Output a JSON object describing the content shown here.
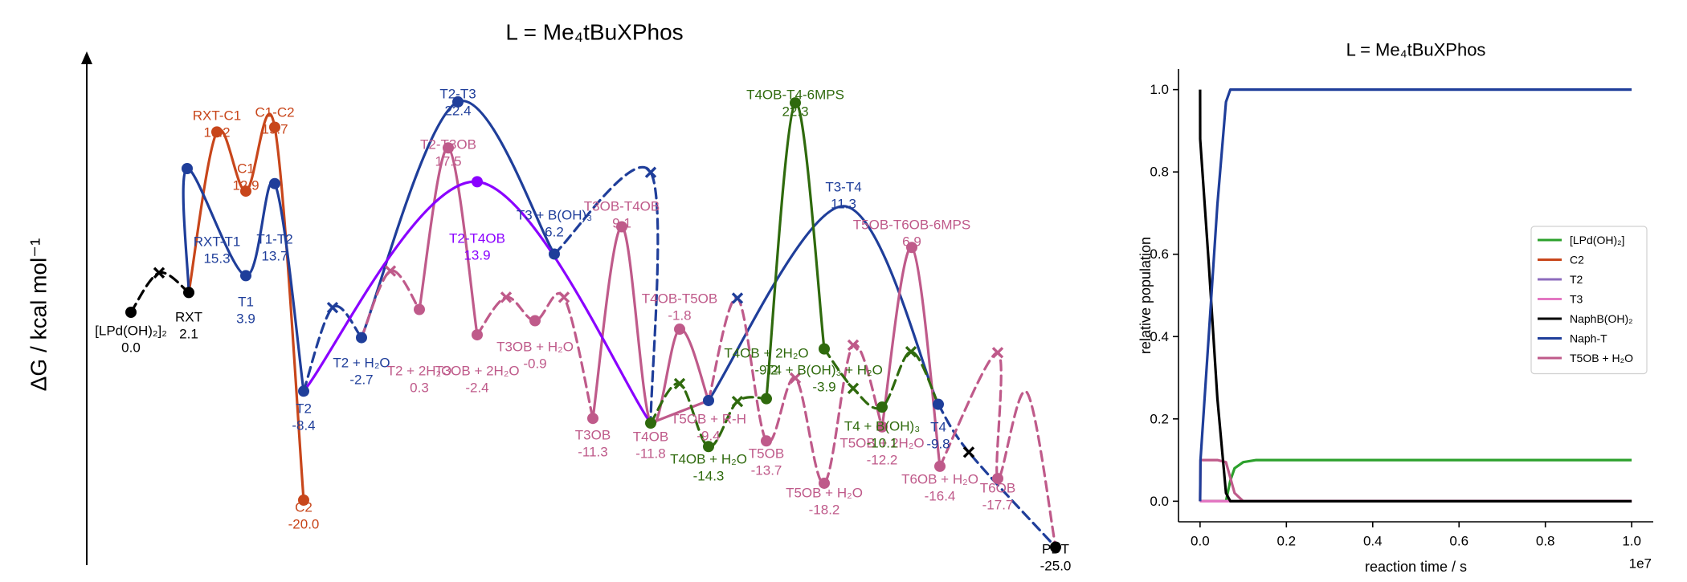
{
  "chart_data": [
    {
      "type": "line",
      "title": "L = Me₄tBuXPhos",
      "ylabel": "ΔG / kcal mol⁻¹",
      "xlabel": "",
      "colors": {
        "black": "#000000",
        "orange": "#c8461b",
        "blue": "#1f3e9a",
        "pink": "#bf5a8a",
        "purple": "#8a00ff",
        "green": "#2f6a0d"
      },
      "ylim": [
        -25.0,
        22.4
      ],
      "labels": [
        {
          "color": "black",
          "name": "[LPd(OH)₂]₂",
          "value": "0.0"
        },
        {
          "color": "black",
          "name": "RXT",
          "value": "2.1"
        },
        {
          "color": "orange",
          "name": "RXT-C1",
          "value": "19.2"
        },
        {
          "color": "orange",
          "name": "C1",
          "value": "12.9"
        },
        {
          "color": "orange",
          "name": "C1-C2",
          "value": "19.7"
        },
        {
          "color": "orange",
          "name": "C2",
          "value": "-20.0"
        },
        {
          "color": "blue",
          "name": "RXT-T1",
          "value": "15.3"
        },
        {
          "color": "blue",
          "name": "T1",
          "value": "3.9"
        },
        {
          "color": "blue",
          "name": "T1-T2",
          "value": "13.7"
        },
        {
          "color": "blue",
          "name": "T2",
          "value": "-8.4"
        },
        {
          "color": "blue",
          "name": "T2 + H₂O",
          "value": "-2.7"
        },
        {
          "color": "blue",
          "name": "T2-T3",
          "value": "22.4"
        },
        {
          "color": "blue",
          "name": "T3 + B(OH)₃",
          "value": "6.2"
        },
        {
          "color": "blue",
          "name": "T3-T4",
          "value": "11.3"
        },
        {
          "color": "blue",
          "name": "T4",
          "value": "-9.8"
        },
        {
          "color": "pink",
          "name": "T2 + 2H₂O",
          "value": "0.3"
        },
        {
          "color": "pink",
          "name": "T2-T3OB",
          "value": "17.5"
        },
        {
          "color": "pink",
          "name": "T3OB + 2H₂O",
          "value": "-2.4"
        },
        {
          "color": "pink",
          "name": "T3OB + H₂O",
          "value": "-0.9"
        },
        {
          "color": "pink",
          "name": "T3OB",
          "value": "-11.3"
        },
        {
          "color": "pink",
          "name": "T3OB-T4OB",
          "value": "9.1"
        },
        {
          "color": "pink",
          "name": "T4OB",
          "value": "-11.8"
        },
        {
          "color": "pink",
          "name": "T4OB-T5OB",
          "value": "-1.8"
        },
        {
          "color": "pink",
          "name": "T5OB + R-H",
          "value": "-9.4"
        },
        {
          "color": "pink",
          "name": "T5OB",
          "value": "-13.7"
        },
        {
          "color": "pink",
          "name": "T5OB + H₂O",
          "value": "-18.2"
        },
        {
          "color": "pink",
          "name": "T5OB + 2H₂O",
          "value": "-12.2"
        },
        {
          "color": "pink",
          "name": "T5OB-T6OB-6MPS",
          "value": "6.9"
        },
        {
          "color": "pink",
          "name": "T6OB + H₂O",
          "value": "-16.4"
        },
        {
          "color": "pink",
          "name": "T6OB",
          "value": "-17.7"
        },
        {
          "color": "purple",
          "name": "T2-T4OB",
          "value": "13.9"
        },
        {
          "color": "green",
          "name": "T4OB + H₂O",
          "value": "-14.3"
        },
        {
          "color": "green",
          "name": "T4OB + 2H₂O",
          "value": "-9.2"
        },
        {
          "color": "green",
          "name": "T4OB-T4-6MPS",
          "value": "22.3"
        },
        {
          "color": "green",
          "name": "T4 + B(OH)₃ + H₂O",
          "value": "-3.9"
        },
        {
          "color": "green",
          "name": "T4 + B(OH)₃",
          "value": "-10.1"
        },
        {
          "color": "black",
          "name": "PDT",
          "value": "-25.0"
        }
      ]
    },
    {
      "type": "line",
      "title": "L = Me₄tBuXPhos",
      "xlabel": "reaction time / s",
      "ylabel": "relative population",
      "x_offset_label": "1e7",
      "xlim": [
        -0.05,
        1.05
      ],
      "ylim": [
        -0.05,
        1.05
      ],
      "x_ticks": [
        0.0,
        0.2,
        0.4,
        0.6,
        0.8,
        1.0
      ],
      "y_ticks": [
        0.0,
        0.2,
        0.4,
        0.6,
        0.8,
        1.0
      ],
      "x_tick_labels": [
        "0.0",
        "0.2",
        "0.4",
        "0.6",
        "0.8",
        "1.0"
      ],
      "y_tick_labels": [
        "0.0",
        "0.2",
        "0.4",
        "0.6",
        "0.8",
        "1.0"
      ],
      "legend_position": "center-right",
      "series": [
        {
          "name": "[LPd(OH)₂]",
          "color": "#2ca02c",
          "x": [
            0,
            0.05,
            0.06,
            0.07,
            0.08,
            0.1,
            0.13,
            0.2,
            1.0
          ],
          "y": [
            0,
            0,
            0.0,
            0.05,
            0.08,
            0.095,
            0.1,
            0.1,
            0.1
          ]
        },
        {
          "name": "C2",
          "color": "#c8461b",
          "x": [
            0,
            1.0
          ],
          "y": [
            0,
            0
          ]
        },
        {
          "name": "T2",
          "color": "#8c6bbd",
          "x": [
            0,
            1.0
          ],
          "y": [
            0,
            0
          ]
        },
        {
          "name": "T3",
          "color": "#e377c2",
          "x": [
            0,
            1.0
          ],
          "y": [
            0,
            0
          ]
        },
        {
          "name": "NaphB(OH)₂",
          "color": "#000000",
          "x": [
            0,
            0.0003,
            0.02,
            0.04,
            0.06,
            0.07,
            1.0
          ],
          "y": [
            1.0,
            0.88,
            0.58,
            0.25,
            0.02,
            0,
            0
          ]
        },
        {
          "name": "Naph-T",
          "color": "#1f3e9a",
          "x": [
            0,
            0.001,
            0.02,
            0.04,
            0.06,
            0.07,
            1.0
          ],
          "y": [
            0,
            0.1,
            0.4,
            0.72,
            0.97,
            1.0,
            1.0
          ]
        },
        {
          "name": "T5OB + H₂O",
          "color": "#bf5a8a",
          "x": [
            0,
            0.001,
            0.04,
            0.06,
            0.08,
            0.1,
            1.0
          ],
          "y": [
            0,
            0.1,
            0.1,
            0.095,
            0.02,
            0,
            0
          ]
        }
      ]
    }
  ]
}
